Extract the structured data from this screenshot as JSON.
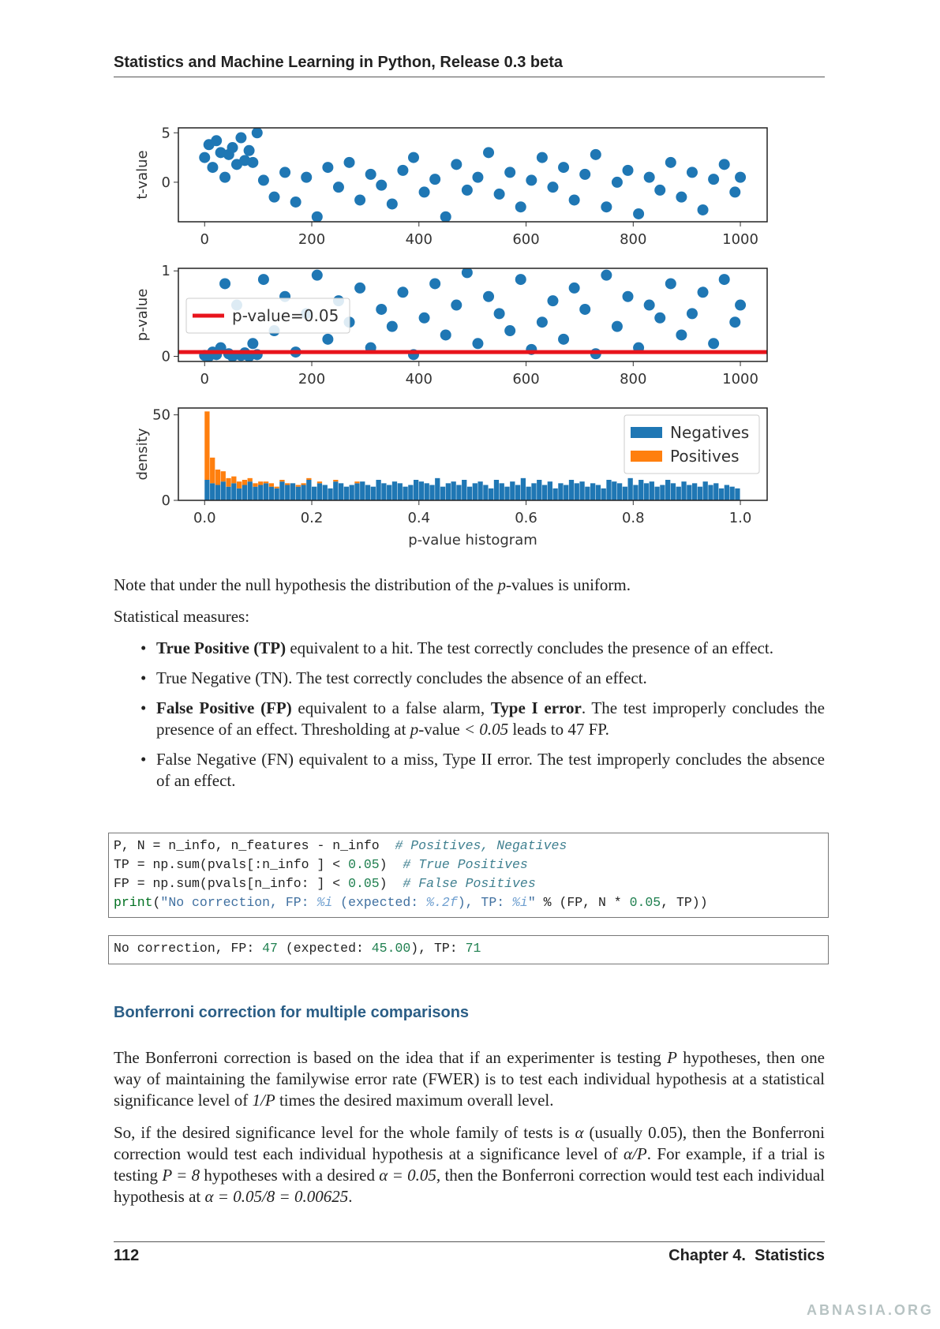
{
  "header": {
    "title": "Statistics and Machine Learning in Python, Release 0.3 beta"
  },
  "chart_data": [
    {
      "type": "scatter",
      "ylabel": "t-value",
      "color": "#1f77b4",
      "x": [
        0,
        8,
        15,
        22,
        30,
        38,
        45,
        52,
        60,
        68,
        75,
        83,
        90,
        98,
        110,
        130,
        150,
        170,
        190,
        210,
        230,
        250,
        270,
        290,
        310,
        330,
        350,
        370,
        390,
        410,
        430,
        450,
        470,
        490,
        510,
        530,
        550,
        570,
        590,
        610,
        630,
        650,
        670,
        690,
        710,
        730,
        750,
        770,
        790,
        810,
        830,
        850,
        870,
        890,
        910,
        930,
        950,
        970,
        990,
        1000
      ],
      "y": [
        2.5,
        3.8,
        1.5,
        4.2,
        3.0,
        0.5,
        2.8,
        3.5,
        1.8,
        4.5,
        2.2,
        3.2,
        2.0,
        5.0,
        0.2,
        -1.5,
        1.0,
        -2.0,
        0.5,
        -3.5,
        1.5,
        -0.5,
        2.0,
        -1.8,
        0.8,
        -0.3,
        -2.2,
        1.2,
        2.5,
        -1.0,
        0.3,
        -3.5,
        1.8,
        -0.8,
        0.5,
        3.0,
        -1.2,
        1.0,
        -2.5,
        0.2,
        2.5,
        -0.5,
        1.5,
        -1.8,
        0.8,
        2.8,
        -2.5,
        0.0,
        1.2,
        -3.2,
        0.5,
        -0.8,
        2.0,
        -1.5,
        1.0,
        -2.8,
        0.3,
        1.8,
        -1.0,
        0.5
      ],
      "xlim": [
        -49,
        1050
      ],
      "ylim": [
        -4,
        5.5
      ],
      "xticks": [
        0,
        200,
        400,
        600,
        800,
        1000
      ],
      "yticks": [
        0,
        5
      ]
    },
    {
      "type": "scatter",
      "ylabel": "p-value",
      "color": "#1f77b4",
      "x": [
        0,
        8,
        15,
        22,
        30,
        38,
        45,
        52,
        60,
        68,
        75,
        83,
        90,
        98,
        110,
        130,
        150,
        170,
        190,
        210,
        230,
        250,
        270,
        290,
        310,
        330,
        350,
        370,
        390,
        410,
        430,
        450,
        470,
        490,
        510,
        530,
        550,
        570,
        590,
        610,
        630,
        650,
        670,
        690,
        710,
        730,
        750,
        770,
        790,
        810,
        830,
        850,
        870,
        890,
        910,
        930,
        950,
        970,
        990,
        1000
      ],
      "y": [
        0.01,
        0.0,
        0.05,
        0.02,
        0.1,
        0.85,
        0.03,
        0.0,
        0.6,
        0.01,
        0.04,
        0.0,
        0.15,
        0.02,
        0.9,
        0.3,
        0.7,
        0.05,
        0.5,
        0.95,
        0.2,
        0.65,
        0.4,
        0.8,
        0.1,
        0.55,
        0.35,
        0.75,
        0.02,
        0.45,
        0.85,
        0.25,
        0.6,
        0.98,
        0.15,
        0.7,
        0.5,
        0.3,
        0.9,
        0.08,
        0.4,
        0.65,
        0.2,
        0.8,
        0.55,
        0.03,
        0.95,
        0.35,
        0.7,
        0.1,
        0.6,
        0.45,
        0.85,
        0.25,
        0.5,
        0.75,
        0.15,
        0.9,
        0.4,
        0.6
      ],
      "hline": {
        "value": 0.05,
        "color": "#e8141c",
        "label": "p-value=0.05"
      },
      "legend": "upper left",
      "xlim": [
        -49,
        1050
      ],
      "ylim": [
        -0.06,
        1.03
      ],
      "xticks": [
        0,
        200,
        400,
        600,
        800,
        1000
      ],
      "yticks": [
        0,
        1
      ]
    },
    {
      "type": "histogram",
      "ylabel": "density",
      "xlabel": "p-value histogram",
      "stacked": true,
      "legend": "upper right",
      "bins": [
        0,
        0.01,
        0.02,
        0.03,
        0.04,
        0.05,
        0.06,
        0.07,
        0.08,
        0.09,
        0.1,
        0.11,
        0.12,
        0.13,
        0.14,
        0.15,
        0.16,
        0.17,
        0.18,
        0.19,
        0.2,
        0.21,
        0.22,
        0.23,
        0.24,
        0.25,
        0.26,
        0.27,
        0.28,
        0.29,
        0.3,
        0.31,
        0.32,
        0.33,
        0.34,
        0.35,
        0.36,
        0.37,
        0.38,
        0.39,
        0.4,
        0.41,
        0.42,
        0.43,
        0.44,
        0.45,
        0.46,
        0.47,
        0.48,
        0.49,
        0.5,
        0.51,
        0.52,
        0.53,
        0.54,
        0.55,
        0.56,
        0.57,
        0.58,
        0.59,
        0.6,
        0.61,
        0.62,
        0.63,
        0.64,
        0.65,
        0.66,
        0.67,
        0.68,
        0.69,
        0.7,
        0.71,
        0.72,
        0.73,
        0.74,
        0.75,
        0.76,
        0.77,
        0.78,
        0.79,
        0.8,
        0.81,
        0.82,
        0.83,
        0.84,
        0.85,
        0.86,
        0.87,
        0.88,
        0.89,
        0.9,
        0.91,
        0.92,
        0.93,
        0.94,
        0.95,
        0.96,
        0.97,
        0.98,
        0.99,
        1.0
      ],
      "series": [
        {
          "name": "Negatives",
          "color": "#1f77b4",
          "values": [
            12,
            10,
            9,
            11,
            8,
            10,
            7,
            9,
            11,
            8,
            9,
            10,
            8,
            7,
            11,
            9,
            10,
            8,
            9,
            12,
            8,
            10,
            9,
            7,
            11,
            10,
            8,
            9,
            10,
            11,
            9,
            8,
            12,
            10,
            9,
            11,
            10,
            8,
            9,
            12,
            11,
            10,
            9,
            13,
            8,
            10,
            11,
            9,
            12,
            8,
            10,
            11,
            9,
            7,
            12,
            10,
            8,
            11,
            9,
            13,
            8,
            10,
            12,
            9,
            11,
            7,
            10,
            9,
            12,
            10,
            11,
            8,
            10,
            9,
            7,
            12,
            11,
            10,
            8,
            13,
            9,
            12,
            10,
            11,
            8,
            9,
            12,
            10,
            8,
            11,
            9,
            10,
            8,
            11,
            9,
            10,
            7,
            9,
            8,
            7
          ]
        },
        {
          "name": "Positives",
          "color": "#ff7f0e",
          "values": [
            40,
            15,
            9,
            6,
            5,
            4,
            4,
            3,
            2,
            2,
            2,
            1,
            2,
            1,
            1,
            1,
            0,
            1,
            1,
            1,
            0,
            1,
            0,
            0,
            1,
            0,
            0,
            0,
            1,
            0,
            0,
            0,
            0,
            0,
            0,
            0,
            0,
            0,
            0,
            0,
            0,
            0,
            0,
            0,
            0,
            0,
            0,
            0,
            0,
            0,
            0,
            0,
            0,
            0,
            0,
            0,
            0,
            0,
            0,
            0,
            0,
            0,
            0,
            0,
            0,
            0,
            0,
            0,
            0,
            0,
            0,
            0,
            0,
            0,
            0,
            0,
            0,
            0,
            0,
            0,
            0,
            0,
            0,
            0,
            0,
            0,
            0,
            0,
            0,
            0,
            0,
            0,
            0,
            0,
            0,
            0,
            0,
            0,
            0,
            0
          ]
        }
      ],
      "xlim": [
        -0.049,
        1.05
      ],
      "ylim": [
        0,
        54
      ],
      "xticks": [
        {
          "value": 0,
          "label": "0.0"
        },
        0.2,
        0.4,
        0.6,
        0.8,
        {
          "value": 1,
          "label": "1.0"
        }
      ],
      "yticks": [
        0,
        50
      ]
    }
  ],
  "body": {
    "note": [
      {
        "t": "Note that under the null hypothesis the distribution of the "
      },
      {
        "i": "p"
      },
      {
        "t": "-values is uniform."
      }
    ],
    "measures_intro": "Statistical measures:",
    "bullets": [
      [
        {
          "b": "True Positive (TP)"
        },
        {
          "t": " equivalent to a hit.  The test correctly concludes the presence of an effect."
        }
      ],
      [
        {
          "t": "True Negative (TN). The test correctly concludes the absence of an effect."
        }
      ],
      [
        {
          "b": "False Positive (FP)"
        },
        {
          "t": " equivalent to a false alarm, "
        },
        {
          "b": "Type I error"
        },
        {
          "t": ".  The test improperly concludes the presence of an effect. Thresholding at "
        },
        {
          "m": "p"
        },
        {
          "t": "-value "
        },
        {
          "m": "< 0.05"
        },
        {
          "t": " leads to 47 FP."
        }
      ],
      [
        {
          "t": "False Negative (FN) equivalent to a miss, Type II error. The test improperly concludes the absence of an effect."
        }
      ]
    ]
  },
  "code": {
    "input": [
      [
        {
          "t": "P, N = n_info, n_features - n_info  "
        },
        {
          "t": "# Positives, Negatives",
          "k": "com"
        }
      ],
      [
        {
          "t": "TP = np.sum(pvals[:n_info ] < "
        },
        {
          "t": "0.05",
          "k": "num"
        },
        {
          "t": ")  "
        },
        {
          "t": "# True Positives",
          "k": "com"
        }
      ],
      [
        {
          "t": "FP = np.sum(pvals[n_info: ] < "
        },
        {
          "t": "0.05",
          "k": "num"
        },
        {
          "t": ")  "
        },
        {
          "t": "# False Positives",
          "k": "com"
        }
      ],
      [
        {
          "t": "print",
          "k": "kw"
        },
        {
          "t": "("
        },
        {
          "t": "\"No correction, FP: ",
          "k": "str"
        },
        {
          "t": "%i",
          "k": "fmt"
        },
        {
          "t": " (expected: ",
          "k": "str"
        },
        {
          "t": "%.2f",
          "k": "fmt"
        },
        {
          "t": "), TP: ",
          "k": "str"
        },
        {
          "t": "%i",
          "k": "fmt"
        },
        {
          "t": "\"",
          "k": "str"
        },
        {
          "t": " % (FP, N * "
        },
        {
          "t": "0.05",
          "k": "num"
        },
        {
          "t": ", TP))"
        }
      ]
    ],
    "output": [
      {
        "t": "No correction, FP: "
      },
      {
        "t": "47",
        "k": "num"
      },
      {
        "t": " (expected: "
      },
      {
        "t": "45.00",
        "k": "num"
      },
      {
        "t": "), TP: "
      },
      {
        "t": "71",
        "k": "num"
      }
    ]
  },
  "section": {
    "heading": "Bonferroni correction for multiple comparisons",
    "paragraphs": [
      [
        {
          "t": "The Bonferroni correction is based on the idea that if an experimenter is testing "
        },
        {
          "m": "P"
        },
        {
          "t": " hypotheses, then one way of maintaining the familywise error rate (FWER) is to test each individual hypothesis at a statistical significance level of "
        },
        {
          "m": "1/P"
        },
        {
          "t": " times the desired maximum overall level."
        }
      ],
      [
        {
          "t": "So, if the desired significance level for the whole family of tests is "
        },
        {
          "m": "α"
        },
        {
          "t": " (usually 0.05), then the Bonferroni correction would test each individual hypothesis at a significance level of "
        },
        {
          "m": "α/P"
        },
        {
          "t": ". For example, if a trial is testing "
        },
        {
          "m": "P = 8"
        },
        {
          "t": " hypotheses with a desired "
        },
        {
          "m": "α = 0.05"
        },
        {
          "t": ", then the Bonferroni correction would test each individual hypothesis at "
        },
        {
          "m": "α = 0.05/8 = 0.00625"
        },
        {
          "t": "."
        }
      ]
    ]
  },
  "footer": {
    "page": "112",
    "chapter": "Chapter 4.  Statistics"
  },
  "watermark": "ABNASIA.ORG"
}
